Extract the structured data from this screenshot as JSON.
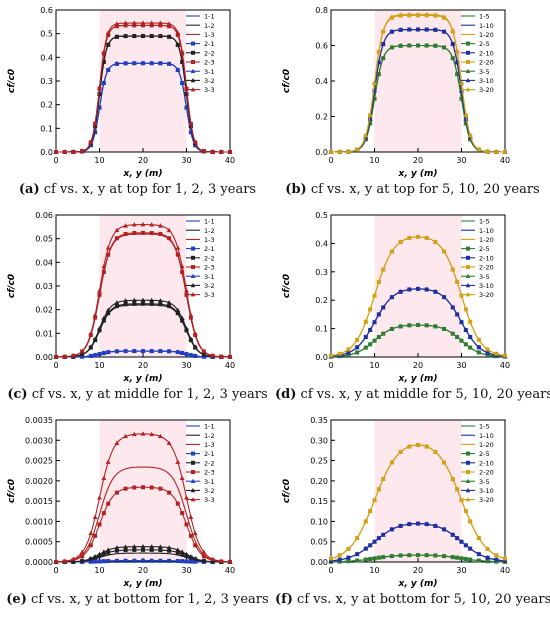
{
  "chart_data": [
    {
      "id": "a",
      "type": "line",
      "caption_letter": "(a)",
      "caption": "cf vs. x, y at top for 1, 2, 3 years",
      "xlabel": "x, y (m)",
      "ylabel": "cf/c0",
      "xlim": [
        0,
        40
      ],
      "ylim": [
        0,
        0.6
      ],
      "xticks": [
        "0",
        "10",
        "20",
        "30",
        "40"
      ],
      "yticks": [
        "0.0",
        "0.1",
        "0.2",
        "0.3",
        "0.4",
        "0.5",
        "0.6"
      ],
      "legend_position": "top-right",
      "series": [
        {
          "name": "1-1",
          "color": "#1f3fbf",
          "marker": "none",
          "plateau": 0.375
        },
        {
          "name": "1-2",
          "color": "#222222",
          "marker": "none",
          "plateau": 0.49
        },
        {
          "name": "1-3",
          "color": "#b22222",
          "marker": "none",
          "plateau": 0.535
        },
        {
          "name": "2-1",
          "color": "#1f3fbf",
          "marker": "square",
          "plateau": 0.375
        },
        {
          "name": "2-2",
          "color": "#222222",
          "marker": "square",
          "plateau": 0.49
        },
        {
          "name": "2-3",
          "color": "#b22222",
          "marker": "square",
          "plateau": 0.535
        },
        {
          "name": "3-1",
          "color": "#1f3fbf",
          "marker": "triangle",
          "plateau": 0.375
        },
        {
          "name": "3-2",
          "color": "#222222",
          "marker": "triangle",
          "plateau": 0.49
        },
        {
          "name": "3-3",
          "color": "#b22222",
          "marker": "triangle",
          "plateau": 0.545
        }
      ],
      "profile": {
        "edges": [
          10,
          30
        ],
        "rise_width": 0.8
      }
    },
    {
      "id": "b",
      "type": "line",
      "caption_letter": "(b)",
      "caption": "cf vs. x, y at top for 5, 10, 20 years",
      "xlabel": "x, y (m)",
      "ylabel": "cf/c0",
      "xlim": [
        0,
        40
      ],
      "ylim": [
        0,
        0.8
      ],
      "xticks": [
        "0",
        "10",
        "20",
        "30",
        "40"
      ],
      "yticks": [
        "0.0",
        "0.2",
        "0.4",
        "0.6",
        "0.8"
      ],
      "legend_position": "top-right",
      "series": [
        {
          "name": "1-5",
          "color": "#2e7d32",
          "marker": "none",
          "plateau": 0.6
        },
        {
          "name": "1-10",
          "color": "#1f2f9f",
          "marker": "none",
          "plateau": 0.69
        },
        {
          "name": "1-20",
          "color": "#d4a017",
          "marker": "none",
          "plateau": 0.77
        },
        {
          "name": "2-5",
          "color": "#2e7d32",
          "marker": "square",
          "plateau": 0.6
        },
        {
          "name": "2-10",
          "color": "#1f2f9f",
          "marker": "square",
          "plateau": 0.69
        },
        {
          "name": "2-20",
          "color": "#d4a017",
          "marker": "square",
          "plateau": 0.77
        },
        {
          "name": "3-5",
          "color": "#2e7d32",
          "marker": "triangle",
          "plateau": 0.6
        },
        {
          "name": "3-10",
          "color": "#1f2f9f",
          "marker": "triangle",
          "plateau": 0.69
        },
        {
          "name": "3-20",
          "color": "#d4a017",
          "marker": "triangle",
          "plateau": 0.775
        }
      ],
      "profile": {
        "edges": [
          10,
          30
        ],
        "rise_width": 1.0
      }
    },
    {
      "id": "c",
      "type": "line",
      "caption_letter": "(c)",
      "caption": "cf vs. x, y at middle for 1, 2, 3 years",
      "xlabel": "x, y (m)",
      "ylabel": "cf/c0",
      "xlim": [
        0,
        40
      ],
      "ylim": [
        0,
        0.06
      ],
      "xticks": [
        "0",
        "10",
        "20",
        "30",
        "40"
      ],
      "yticks": [
        "0.00",
        "0.01",
        "0.02",
        "0.03",
        "0.04",
        "0.05",
        "0.06"
      ],
      "legend_position": "top-right",
      "series": [
        {
          "name": "1-1",
          "color": "#1f3fbf",
          "marker": "none",
          "plateau": 0.0025
        },
        {
          "name": "1-2",
          "color": "#222222",
          "marker": "none",
          "plateau": 0.022
        },
        {
          "name": "1-3",
          "color": "#b22222",
          "marker": "none",
          "plateau": 0.052
        },
        {
          "name": "2-1",
          "color": "#1f3fbf",
          "marker": "square",
          "plateau": 0.0025
        },
        {
          "name": "2-2",
          "color": "#222222",
          "marker": "square",
          "plateau": 0.0225
        },
        {
          "name": "2-3",
          "color": "#b22222",
          "marker": "square",
          "plateau": 0.0525
        },
        {
          "name": "3-1",
          "color": "#1f3fbf",
          "marker": "triangle",
          "plateau": 0.0025
        },
        {
          "name": "3-2",
          "color": "#222222",
          "marker": "triangle",
          "plateau": 0.024
        },
        {
          "name": "3-3",
          "color": "#b22222",
          "marker": "triangle",
          "plateau": 0.056
        }
      ],
      "profile": {
        "edges": [
          10,
          30
        ],
        "rise_width": 1.3
      }
    },
    {
      "id": "d",
      "type": "line",
      "caption_letter": "(d)",
      "caption": "cf vs. x, y at middle for 5, 10, 20 years",
      "xlabel": "x, y (m)",
      "ylabel": "cf/c0",
      "xlim": [
        0,
        40
      ],
      "ylim": [
        0,
        0.5
      ],
      "xticks": [
        "0",
        "10",
        "20",
        "30",
        "40"
      ],
      "yticks": [
        "0.0",
        "0.1",
        "0.2",
        "0.3",
        "0.4",
        "0.5"
      ],
      "legend_position": "top-right",
      "series": [
        {
          "name": "1-5",
          "color": "#2e7d32",
          "marker": "none",
          "plateau": 0.115
        },
        {
          "name": "1-10",
          "color": "#1f2f9f",
          "marker": "none",
          "plateau": 0.245
        },
        {
          "name": "1-20",
          "color": "#d4a017",
          "marker": "none",
          "plateau": 0.432
        },
        {
          "name": "2-5",
          "color": "#2e7d32",
          "marker": "square",
          "plateau": 0.115
        },
        {
          "name": "2-10",
          "color": "#1f2f9f",
          "marker": "square",
          "plateau": 0.245
        },
        {
          "name": "2-20",
          "color": "#d4a017",
          "marker": "square",
          "plateau": 0.432
        },
        {
          "name": "3-5",
          "color": "#2e7d32",
          "marker": "triangle",
          "plateau": 0.115
        },
        {
          "name": "3-10",
          "color": "#1f2f9f",
          "marker": "triangle",
          "plateau": 0.245
        },
        {
          "name": "3-20",
          "color": "#d4a017",
          "marker": "triangle",
          "plateau": 0.432
        }
      ],
      "profile": {
        "edges": [
          10,
          30
        ],
        "rise_width": 2.2
      }
    },
    {
      "id": "e",
      "type": "line",
      "caption_letter": "(e)",
      "caption": "cf vs. x, y at bottom for 1, 2, 3 years",
      "xlabel": "x, y (m)",
      "ylabel": "cf/c0",
      "xlim": [
        0,
        40
      ],
      "ylim": [
        0,
        0.0035
      ],
      "xticks": [
        "0",
        "10",
        "20",
        "30",
        "40"
      ],
      "yticks": [
        "0.0000",
        "0.0005",
        "0.0010",
        "0.0015",
        "0.0020",
        "0.0025",
        "0.0030",
        "0.0035"
      ],
      "legend_position": "top-right",
      "series": [
        {
          "name": "1-1",
          "color": "#1f3fbf",
          "marker": "none",
          "plateau": 3e-05
        },
        {
          "name": "1-2",
          "color": "#222222",
          "marker": "none",
          "plateau": 0.00022
        },
        {
          "name": "1-3",
          "color": "#b22222",
          "marker": "none",
          "plateau": 0.00235
        },
        {
          "name": "2-1",
          "color": "#1f3fbf",
          "marker": "square",
          "plateau": 3e-05
        },
        {
          "name": "2-2",
          "color": "#222222",
          "marker": "square",
          "plateau": 0.0003
        },
        {
          "name": "2-3",
          "color": "#b22222",
          "marker": "square",
          "plateau": 0.00185
        },
        {
          "name": "3-1",
          "color": "#1f3fbf",
          "marker": "triangle",
          "plateau": 3e-05
        },
        {
          "name": "3-2",
          "color": "#222222",
          "marker": "triangle",
          "plateau": 0.00038
        },
        {
          "name": "3-3",
          "color": "#b22222",
          "marker": "triangle",
          "plateau": 0.00317
        }
      ],
      "profile": {
        "edges": [
          10,
          30
        ],
        "rise_width": 1.6
      }
    },
    {
      "id": "f",
      "type": "line",
      "caption_letter": "(f)",
      "caption": "cf vs. x, y at bottom for 5, 10, 20 years",
      "xlabel": "x, y (m)",
      "ylabel": "cf/c0",
      "xlim": [
        0,
        40
      ],
      "ylim": [
        0,
        0.35
      ],
      "xticks": [
        "0",
        "10",
        "20",
        "30",
        "40"
      ],
      "yticks": [
        "0.00",
        "0.05",
        "0.10",
        "0.15",
        "0.20",
        "0.25",
        "0.30",
        "0.35"
      ],
      "legend_position": "top-right",
      "series": [
        {
          "name": "1-5",
          "color": "#2e7d32",
          "marker": "none",
          "plateau": 0.018
        },
        {
          "name": "1-10",
          "color": "#1f2f9f",
          "marker": "none",
          "plateau": 0.1
        },
        {
          "name": "1-20",
          "color": "#d4a017",
          "marker": "none",
          "plateau": 0.305
        },
        {
          "name": "2-5",
          "color": "#2e7d32",
          "marker": "square",
          "plateau": 0.018
        },
        {
          "name": "2-10",
          "color": "#1f2f9f",
          "marker": "square",
          "plateau": 0.1
        },
        {
          "name": "2-20",
          "color": "#d4a017",
          "marker": "square",
          "plateau": 0.305
        },
        {
          "name": "3-5",
          "color": "#2e7d32",
          "marker": "triangle",
          "plateau": 0.018
        },
        {
          "name": "3-10",
          "color": "#1f2f9f",
          "marker": "triangle",
          "plateau": 0.1
        },
        {
          "name": "3-20",
          "color": "#d4a017",
          "marker": "triangle",
          "plateau": 0.305
        }
      ],
      "profile": {
        "edges": [
          10,
          30
        ],
        "rise_width": 2.8
      }
    }
  ]
}
